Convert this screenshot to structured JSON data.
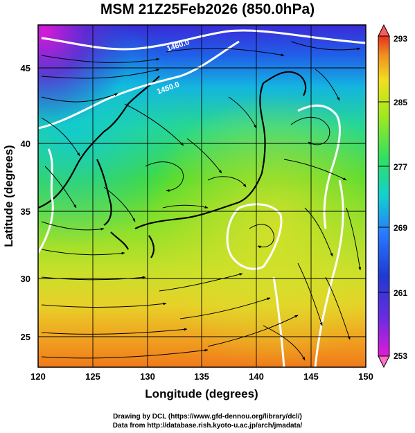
{
  "title": "MSM 21Z25Feb2026 (850.0hPa)",
  "map": {
    "lon_range": [
      120,
      150
    ],
    "lat_range": [
      22.5,
      47.5
    ],
    "x_ticks": [
      "120",
      "125",
      "130",
      "135",
      "140",
      "145",
      "150"
    ],
    "y_ticks": [
      "25",
      "30",
      "35",
      "40",
      "45"
    ],
    "x_label": "Longitude (degrees)",
    "y_label": "Latitude  (degrees)",
    "contour_labels": [
      "1460.0",
      "1450.0"
    ],
    "field": "temperature (K), shaded",
    "overlays": [
      "streamlines (wind)",
      "white geopotential height contours",
      "coastlines"
    ],
    "colors": {
      "warm": "#f07a1a",
      "mid": "#5ad82a",
      "cool": "#14c8c8",
      "cold": "#1f28c8",
      "coldest": "#d01adc",
      "contour": "#ffffff"
    }
  },
  "colorbar": {
    "labels": [
      "293",
      "285",
      "277",
      "269",
      "261",
      "253"
    ],
    "min": 253,
    "max": 293,
    "top_arrow_color": "#ff5a5a",
    "bottom_arrow_color": "#ff70c8"
  },
  "credits": {
    "line1": "Drawing by DCL (https://www.gfd-dennou.org/library/dcl/)",
    "line2": "Data from http://database.rish.kyoto-u.ac.jp/arch/jmadata/"
  }
}
